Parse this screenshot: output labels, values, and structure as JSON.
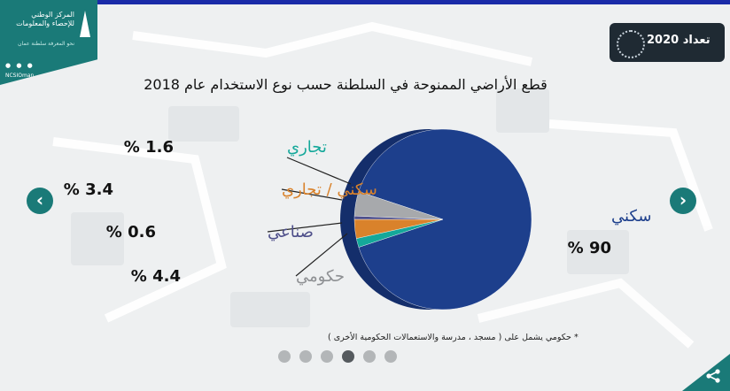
{
  "header": {
    "org_name": "المركز الوطني للإحصاء والمعلومات",
    "org_tagline": "نحو المعرفة سلطنة عمان",
    "handle": "NCSIOman",
    "badge_text": "تعداد 2020"
  },
  "chart_data": {
    "type": "pie",
    "title": "قطع الأراضي الممنوحة في السلطنة حسب نوع الاستخدام عام 2018",
    "slices": [
      {
        "label": "سكني",
        "value_text": "% 90",
        "value": 90,
        "color": "#1d3f8c"
      },
      {
        "label": "تجاري",
        "value_text": "% 1.6",
        "value": 1.6,
        "color": "#14a89a"
      },
      {
        "label": "سكني / تجاري",
        "value_text": "% 3.4",
        "value": 3.4,
        "color": "#d9822b"
      },
      {
        "label": "صناعي",
        "value_text": "% 0.6",
        "value": 0.6,
        "color": "#4e4f8a"
      },
      {
        "label": "حكومي",
        "value_text": "% 4.4",
        "value": 4.4,
        "color": "#a7a9ac"
      }
    ],
    "footnote": "* حكومي يشمل على ( مسجد ، مدرسة والاستعمالات الحكومية الأخرى )"
  },
  "pagination": {
    "count": 6,
    "active": 3
  },
  "colors": {
    "accent": "#1a7a78",
    "bg": "#eef0f1"
  }
}
